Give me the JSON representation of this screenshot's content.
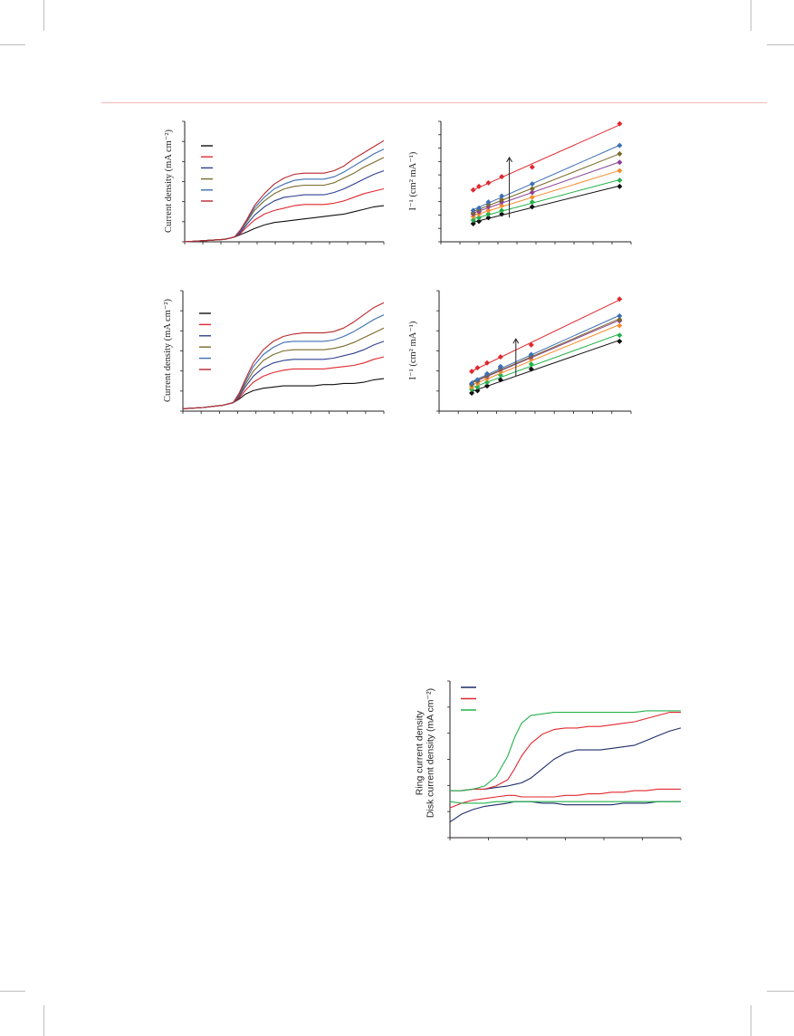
{
  "colors": {
    "header_rule": "#f2b8b8",
    "crop_marks": "#bdbdbd",
    "axis": "#231f20",
    "black": "#111111",
    "red": "#e0282e",
    "darkblue": "#2e3f8f",
    "olive": "#7a6a2a",
    "blue": "#3d6fb3",
    "darkred": "#b8282c",
    "green": "#24b24b",
    "orange": "#f68d2e",
    "purple": "#8a3f96",
    "navy": "#1f2d6b"
  },
  "figures": {
    "a_left": {
      "ylabel": "Current density (mA cm⁻²)",
      "legend_colors": [
        "black",
        "red",
        "darkblue",
        "olive",
        "blue",
        "darkred"
      ]
    },
    "a_right": {
      "ylabel": "I⁻¹ (cm² mA⁻¹)"
    },
    "b_left": {
      "ylabel": "Current density (mA cm⁻²)",
      "legend_colors": [
        "black",
        "red",
        "darkblue",
        "olive",
        "blue",
        "darkred"
      ]
    },
    "b_right": {
      "ylabel": "I⁻¹ (cm² mA⁻¹)"
    },
    "rrde": {
      "ylabel_line1": "Ring current density",
      "ylabel_line2": "Disk current density (mA cm⁻²)",
      "legend_colors": [
        "navy",
        "red",
        "green"
      ]
    }
  },
  "chart_data": [
    {
      "id": "a_left",
      "type": "line",
      "title": "",
      "xlabel": "",
      "ylabel": "Current density (mA cm⁻²)",
      "xlim": [
        0,
        1
      ],
      "ylim": [
        0,
        1
      ],
      "grid": false,
      "legend": "top-left",
      "x": [
        0,
        0.1,
        0.2,
        0.25,
        0.28,
        0.31,
        0.35,
        0.4,
        0.45,
        0.5,
        0.55,
        0.6,
        0.65,
        0.7,
        0.75,
        0.8,
        0.85,
        0.9,
        0.95,
        1.0
      ],
      "series": [
        {
          "color": "black",
          "values": [
            0.0,
            0.01,
            0.02,
            0.04,
            0.06,
            0.08,
            0.11,
            0.14,
            0.16,
            0.17,
            0.18,
            0.19,
            0.2,
            0.21,
            0.22,
            0.23,
            0.25,
            0.27,
            0.29,
            0.3
          ]
        },
        {
          "color": "red",
          "values": [
            0.0,
            0.01,
            0.02,
            0.04,
            0.07,
            0.12,
            0.18,
            0.23,
            0.26,
            0.28,
            0.3,
            0.31,
            0.31,
            0.31,
            0.32,
            0.34,
            0.37,
            0.4,
            0.42,
            0.44
          ]
        },
        {
          "color": "darkblue",
          "values": [
            0.0,
            0.01,
            0.02,
            0.04,
            0.08,
            0.14,
            0.22,
            0.29,
            0.34,
            0.37,
            0.38,
            0.39,
            0.39,
            0.39,
            0.41,
            0.44,
            0.48,
            0.52,
            0.56,
            0.59
          ]
        },
        {
          "color": "olive",
          "values": [
            0.0,
            0.01,
            0.02,
            0.04,
            0.09,
            0.16,
            0.26,
            0.34,
            0.4,
            0.44,
            0.46,
            0.47,
            0.47,
            0.47,
            0.49,
            0.53,
            0.57,
            0.62,
            0.66,
            0.7
          ]
        },
        {
          "color": "blue",
          "values": [
            0.0,
            0.01,
            0.02,
            0.04,
            0.09,
            0.17,
            0.28,
            0.37,
            0.44,
            0.48,
            0.51,
            0.52,
            0.52,
            0.52,
            0.54,
            0.58,
            0.63,
            0.68,
            0.73,
            0.77
          ]
        },
        {
          "color": "darkred",
          "values": [
            0.0,
            0.01,
            0.02,
            0.04,
            0.1,
            0.18,
            0.3,
            0.4,
            0.48,
            0.53,
            0.56,
            0.57,
            0.57,
            0.57,
            0.59,
            0.63,
            0.69,
            0.74,
            0.79,
            0.84
          ]
        }
      ]
    },
    {
      "id": "a_right",
      "type": "scatter",
      "title": "",
      "xlabel": "",
      "ylabel": "I⁻¹ (cm² mA⁻¹)",
      "xlim": [
        0,
        1
      ],
      "ylim": [
        0,
        1
      ],
      "grid": false,
      "x": [
        0.17,
        0.2,
        0.25,
        0.32,
        0.48,
        0.94
      ],
      "series": [
        {
          "color": "black",
          "values": [
            0.15,
            0.17,
            0.2,
            0.23,
            0.29,
            0.46
          ]
        },
        {
          "color": "green",
          "values": [
            0.18,
            0.2,
            0.23,
            0.26,
            0.33,
            0.51
          ]
        },
        {
          "color": "orange",
          "values": [
            0.21,
            0.23,
            0.26,
            0.3,
            0.37,
            0.59
          ]
        },
        {
          "color": "purple",
          "values": [
            0.23,
            0.25,
            0.29,
            0.33,
            0.41,
            0.66
          ]
        },
        {
          "color": "olive",
          "values": [
            0.24,
            0.27,
            0.31,
            0.35,
            0.44,
            0.73
          ]
        },
        {
          "color": "blue",
          "values": [
            0.26,
            0.28,
            0.33,
            0.38,
            0.48,
            0.8
          ]
        },
        {
          "color": "red",
          "values": [
            0.43,
            0.46,
            0.49,
            0.54,
            0.62,
            0.98
          ]
        }
      ]
    },
    {
      "id": "b_left",
      "type": "line",
      "title": "",
      "xlabel": "",
      "ylabel": "Current density (mA cm⁻²)",
      "xlim": [
        0,
        1
      ],
      "ylim": [
        0,
        1
      ],
      "grid": false,
      "legend": "top-left",
      "x": [
        0,
        0.1,
        0.2,
        0.25,
        0.28,
        0.31,
        0.35,
        0.4,
        0.45,
        0.5,
        0.55,
        0.6,
        0.65,
        0.7,
        0.75,
        0.8,
        0.85,
        0.9,
        0.95,
        1.0
      ],
      "series": [
        {
          "color": "black",
          "values": [
            0.02,
            0.03,
            0.05,
            0.07,
            0.1,
            0.14,
            0.17,
            0.19,
            0.2,
            0.21,
            0.21,
            0.21,
            0.21,
            0.22,
            0.22,
            0.23,
            0.23,
            0.24,
            0.26,
            0.27
          ]
        },
        {
          "color": "red",
          "values": [
            0.02,
            0.03,
            0.05,
            0.07,
            0.11,
            0.17,
            0.24,
            0.29,
            0.32,
            0.34,
            0.35,
            0.35,
            0.35,
            0.35,
            0.36,
            0.37,
            0.38,
            0.4,
            0.43,
            0.45
          ]
        },
        {
          "color": "darkblue",
          "values": [
            0.02,
            0.03,
            0.05,
            0.07,
            0.12,
            0.2,
            0.29,
            0.36,
            0.4,
            0.42,
            0.43,
            0.43,
            0.43,
            0.43,
            0.44,
            0.46,
            0.48,
            0.51,
            0.55,
            0.58
          ]
        },
        {
          "color": "olive",
          "values": [
            0.02,
            0.03,
            0.05,
            0.07,
            0.13,
            0.22,
            0.33,
            0.42,
            0.47,
            0.5,
            0.51,
            0.51,
            0.51,
            0.51,
            0.52,
            0.54,
            0.57,
            0.61,
            0.65,
            0.69
          ]
        },
        {
          "color": "blue",
          "values": [
            0.02,
            0.03,
            0.05,
            0.07,
            0.14,
            0.24,
            0.37,
            0.47,
            0.53,
            0.57,
            0.58,
            0.58,
            0.58,
            0.58,
            0.59,
            0.62,
            0.66,
            0.71,
            0.76,
            0.8
          ]
        },
        {
          "color": "darkred",
          "values": [
            0.02,
            0.03,
            0.05,
            0.07,
            0.15,
            0.26,
            0.4,
            0.51,
            0.58,
            0.62,
            0.64,
            0.65,
            0.65,
            0.65,
            0.66,
            0.69,
            0.74,
            0.8,
            0.86,
            0.9
          ]
        }
      ]
    },
    {
      "id": "b_right",
      "type": "scatter",
      "title": "",
      "xlabel": "",
      "ylabel": "I⁻¹ (cm² mA⁻¹)",
      "xlim": [
        0,
        1
      ],
      "ylim": [
        0,
        1
      ],
      "grid": false,
      "x": [
        0.17,
        0.2,
        0.25,
        0.32,
        0.48,
        0.94
      ],
      "series": [
        {
          "color": "black",
          "values": [
            0.15,
            0.17,
            0.21,
            0.26,
            0.35,
            0.58
          ]
        },
        {
          "color": "green",
          "values": [
            0.18,
            0.2,
            0.24,
            0.3,
            0.39,
            0.63
          ]
        },
        {
          "color": "orange",
          "values": [
            0.2,
            0.23,
            0.27,
            0.33,
            0.43,
            0.71
          ]
        },
        {
          "color": "purple",
          "values": [
            0.22,
            0.25,
            0.29,
            0.35,
            0.45,
            0.75
          ]
        },
        {
          "color": "olive",
          "values": [
            0.22,
            0.25,
            0.3,
            0.36,
            0.46,
            0.76
          ]
        },
        {
          "color": "blue",
          "values": [
            0.23,
            0.26,
            0.31,
            0.37,
            0.47,
            0.79
          ]
        },
        {
          "color": "red",
          "values": [
            0.33,
            0.36,
            0.4,
            0.45,
            0.55,
            0.93
          ]
        }
      ]
    },
    {
      "id": "rrde",
      "type": "line",
      "title": "",
      "xlabel": "",
      "ylabel": "Ring current density / Disk current density (mA cm⁻²)",
      "xlim": [
        0,
        1
      ],
      "ylim": [
        0,
        1
      ],
      "grid": false,
      "legend": "top-left",
      "x": [
        0,
        0.05,
        0.1,
        0.15,
        0.2,
        0.25,
        0.28,
        0.31,
        0.35,
        0.4,
        0.45,
        0.5,
        0.55,
        0.6,
        0.65,
        0.7,
        0.75,
        0.8,
        0.85,
        0.9,
        0.95,
        1.0
      ],
      "series": [
        {
          "color": "navy",
          "values": [
            0.3,
            0.3,
            0.31,
            0.31,
            0.32,
            0.33,
            0.34,
            0.35,
            0.38,
            0.44,
            0.5,
            0.54,
            0.56,
            0.56,
            0.56,
            0.57,
            0.58,
            0.59,
            0.62,
            0.65,
            0.68,
            0.7
          ]
        },
        {
          "color": "red",
          "values": [
            0.3,
            0.3,
            0.31,
            0.31,
            0.33,
            0.37,
            0.44,
            0.52,
            0.6,
            0.66,
            0.69,
            0.7,
            0.7,
            0.71,
            0.71,
            0.72,
            0.73,
            0.74,
            0.76,
            0.78,
            0.8,
            0.8
          ]
        },
        {
          "color": "green",
          "values": [
            0.3,
            0.3,
            0.31,
            0.33,
            0.39,
            0.52,
            0.64,
            0.73,
            0.78,
            0.79,
            0.8,
            0.8,
            0.8,
            0.8,
            0.8,
            0.8,
            0.8,
            0.8,
            0.81,
            0.81,
            0.81,
            0.81
          ]
        },
        {
          "color": "navy",
          "values": [
            0.1,
            0.15,
            0.18,
            0.2,
            0.21,
            0.22,
            0.23,
            0.23,
            0.23,
            0.22,
            0.22,
            0.21,
            0.21,
            0.21,
            0.21,
            0.21,
            0.22,
            0.22,
            0.22,
            0.23,
            0.23,
            0.23
          ]
        },
        {
          "color": "red",
          "values": [
            0.19,
            0.22,
            0.24,
            0.25,
            0.26,
            0.27,
            0.27,
            0.26,
            0.26,
            0.26,
            0.26,
            0.27,
            0.27,
            0.28,
            0.28,
            0.29,
            0.29,
            0.3,
            0.3,
            0.31,
            0.31,
            0.31
          ]
        },
        {
          "color": "green",
          "values": [
            0.23,
            0.22,
            0.22,
            0.22,
            0.23,
            0.23,
            0.23,
            0.23,
            0.23,
            0.23,
            0.23,
            0.23,
            0.23,
            0.23,
            0.23,
            0.23,
            0.23,
            0.23,
            0.23,
            0.23,
            0.23,
            0.23
          ]
        }
      ]
    }
  ]
}
